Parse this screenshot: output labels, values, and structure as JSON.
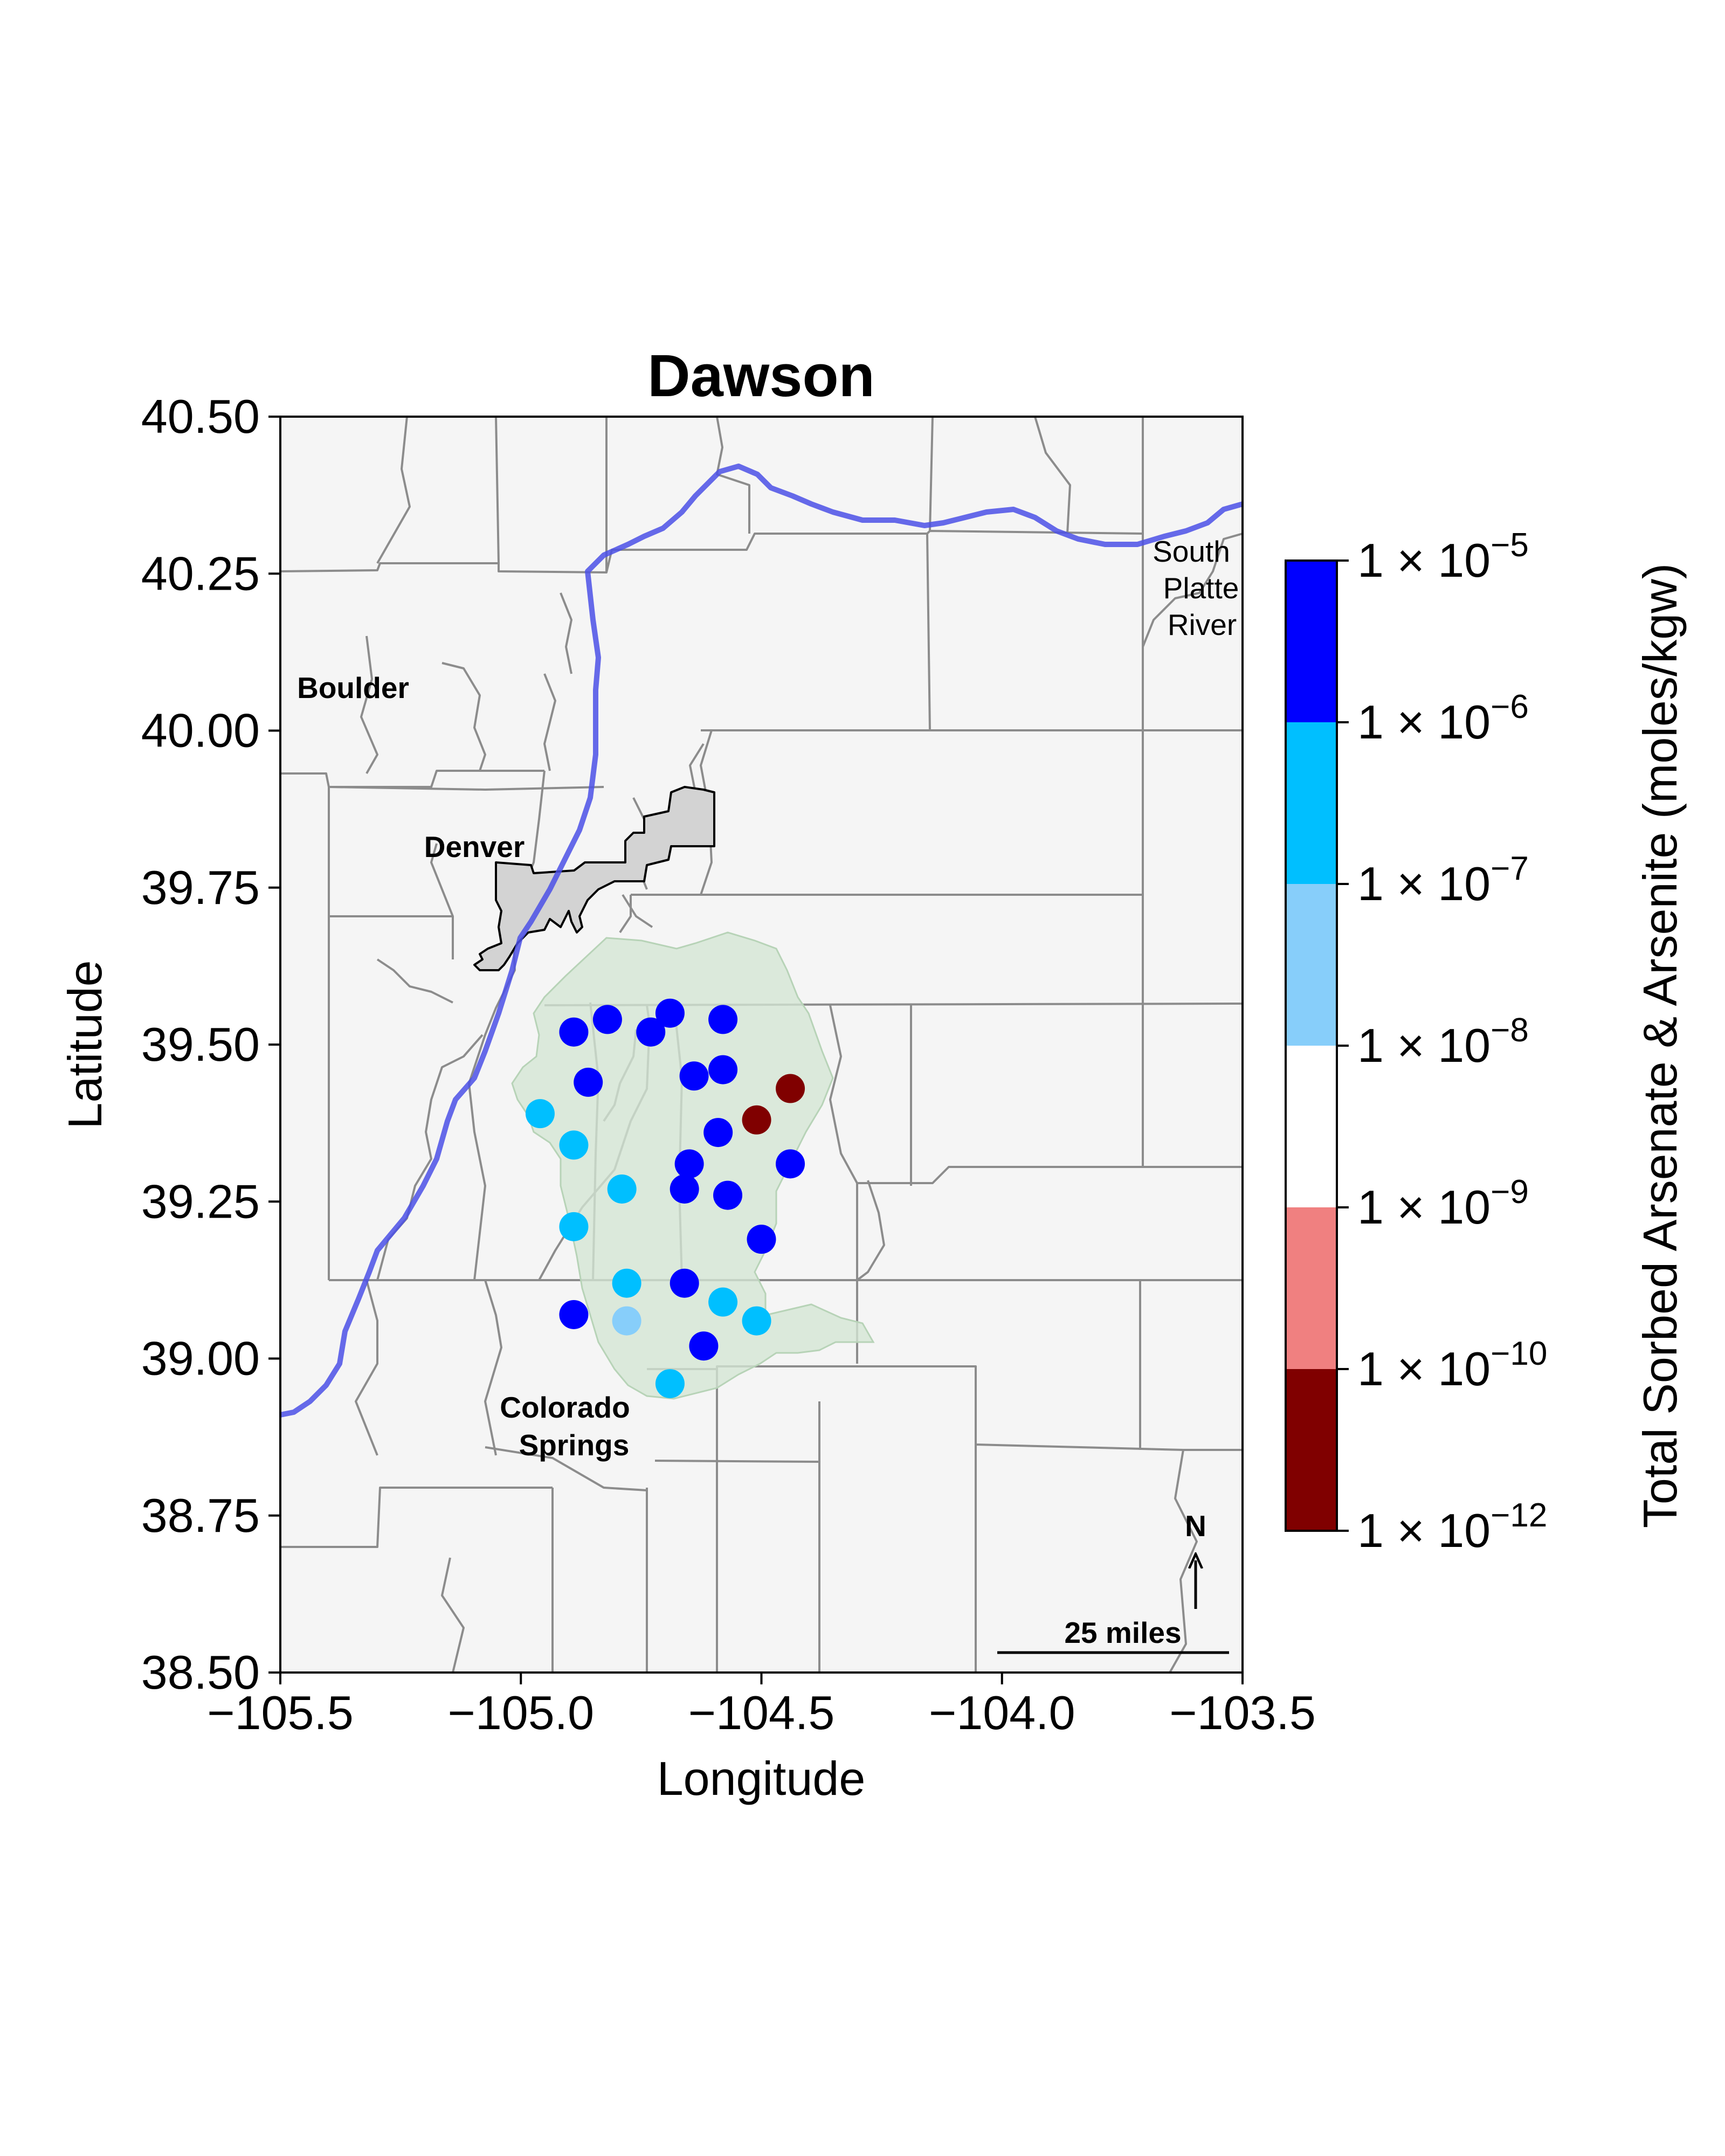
{
  "figure": {
    "title": "Dawson",
    "xlabel": "Longitude",
    "ylabel": "Latitude"
  },
  "places": {
    "boulder": "Boulder",
    "denver": "Denver",
    "colorado_springs": [
      "Colorado",
      "Springs"
    ],
    "river": [
      "South",
      "Platte",
      "River"
    ]
  },
  "north_arrow": {
    "label": "N"
  },
  "scale_bar": {
    "label": "25 miles"
  },
  "colors": {
    "background": "#f5f5f5",
    "aquifer_fill": "#d3e6d3",
    "aquifer_edge": "#b7d3b7",
    "denver_fill": "#d3d3d3",
    "river": "#4b50e6",
    "county_lines": "#8c8c8c"
  },
  "chart_data": {
    "type": "scatter",
    "title": "Dawson",
    "xlabel": "Longitude",
    "ylabel": "Latitude",
    "xlim": [
      -105.5,
      -103.5
    ],
    "ylim": [
      38.5,
      40.5
    ],
    "xticks": [
      -105.5,
      -105.0,
      -104.5,
      -104.0,
      -103.5
    ],
    "xtick_labels": [
      "−105.5",
      "−105.0",
      "−104.5",
      "−104.0",
      "−103.5"
    ],
    "yticks": [
      38.5,
      38.75,
      39.0,
      39.25,
      39.5,
      39.75,
      40.0,
      40.25,
      40.5
    ],
    "ytick_labels": [
      "38.50",
      "38.75",
      "39.00",
      "39.25",
      "39.50",
      "39.75",
      "40.00",
      "40.25",
      "40.50"
    ],
    "colorbar": {
      "label": "Total Sorbed Arsenate & Arsenite (moles/kgw)",
      "scale": "log",
      "bins": [
        {
          "from": 1e-12,
          "to": 1e-10,
          "color": "#800000"
        },
        {
          "from": 1e-10,
          "to": 1e-09,
          "color": "#f08080"
        },
        {
          "from": 1e-09,
          "to": 1e-08,
          "color": "#ffffff"
        },
        {
          "from": 1e-08,
          "to": 1e-07,
          "color": "#87cefa"
        },
        {
          "from": 1e-07,
          "to": 1e-06,
          "color": "#00bfff"
        },
        {
          "from": 1e-06,
          "to": 1e-05,
          "color": "#0000ff"
        }
      ],
      "tick_labels": [
        {
          "base": "1 × 10",
          "exp": "−12"
        },
        {
          "base": "1 × 10",
          "exp": "−10"
        },
        {
          "base": "1 × 10",
          "exp": "−9"
        },
        {
          "base": "1 × 10",
          "exp": "−8"
        },
        {
          "base": "1 × 10",
          "exp": "−7"
        },
        {
          "base": "1 × 10",
          "exp": "−6"
        },
        {
          "base": "1 × 10",
          "exp": "−5"
        }
      ]
    },
    "points": [
      {
        "lon": -104.89,
        "lat": 39.52,
        "color": "#0000ff"
      },
      {
        "lon": -104.82,
        "lat": 39.54,
        "color": "#0000ff"
      },
      {
        "lon": -104.73,
        "lat": 39.52,
        "color": "#0000ff"
      },
      {
        "lon": -104.69,
        "lat": 39.55,
        "color": "#0000ff"
      },
      {
        "lon": -104.58,
        "lat": 39.54,
        "color": "#0000ff"
      },
      {
        "lon": -104.86,
        "lat": 39.44,
        "color": "#0000ff"
      },
      {
        "lon": -104.64,
        "lat": 39.45,
        "color": "#0000ff"
      },
      {
        "lon": -104.58,
        "lat": 39.46,
        "color": "#0000ff"
      },
      {
        "lon": -104.44,
        "lat": 39.43,
        "color": "#800000"
      },
      {
        "lon": -104.51,
        "lat": 39.38,
        "color": "#800000"
      },
      {
        "lon": -104.96,
        "lat": 39.39,
        "color": "#00bfff"
      },
      {
        "lon": -104.89,
        "lat": 39.34,
        "color": "#00bfff"
      },
      {
        "lon": -104.59,
        "lat": 39.36,
        "color": "#0000ff"
      },
      {
        "lon": -104.65,
        "lat": 39.31,
        "color": "#0000ff"
      },
      {
        "lon": -104.44,
        "lat": 39.31,
        "color": "#0000ff"
      },
      {
        "lon": -104.79,
        "lat": 39.27,
        "color": "#00bfff"
      },
      {
        "lon": -104.66,
        "lat": 39.27,
        "color": "#0000ff"
      },
      {
        "lon": -104.57,
        "lat": 39.26,
        "color": "#0000ff"
      },
      {
        "lon": -104.89,
        "lat": 39.21,
        "color": "#00bfff"
      },
      {
        "lon": -104.5,
        "lat": 39.19,
        "color": "#0000ff"
      },
      {
        "lon": -104.78,
        "lat": 39.12,
        "color": "#00bfff"
      },
      {
        "lon": -104.66,
        "lat": 39.12,
        "color": "#0000ff"
      },
      {
        "lon": -104.58,
        "lat": 39.09,
        "color": "#00bfff"
      },
      {
        "lon": -104.89,
        "lat": 39.07,
        "color": "#0000ff"
      },
      {
        "lon": -104.78,
        "lat": 39.06,
        "color": "#87cefa"
      },
      {
        "lon": -104.51,
        "lat": 39.06,
        "color": "#00bfff"
      },
      {
        "lon": -104.62,
        "lat": 39.02,
        "color": "#0000ff"
      },
      {
        "lon": -104.69,
        "lat": 38.96,
        "color": "#00bfff"
      }
    ]
  }
}
